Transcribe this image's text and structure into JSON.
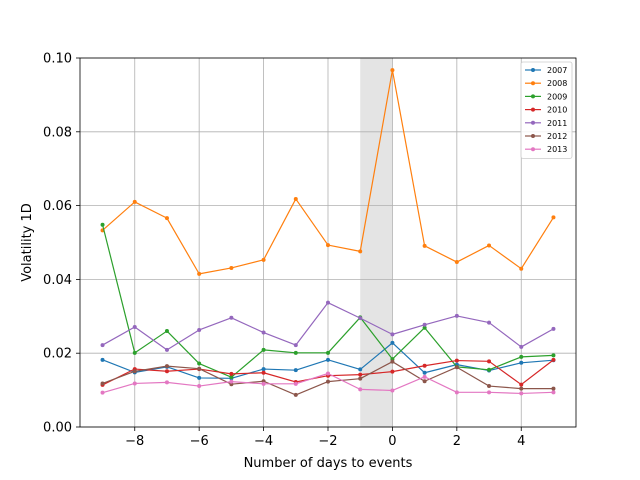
{
  "chart_data": {
    "type": "line",
    "title": "",
    "xlabel": "Number of days to events",
    "ylabel": "Volatility 1D",
    "xlim": [
      -9.7,
      5.7
    ],
    "ylim": [
      0.0,
      0.1
    ],
    "xticks": [
      -8,
      -6,
      -4,
      -2,
      0,
      2,
      4
    ],
    "xtick_labels": [
      "−8",
      "−6",
      "−4",
      "−2",
      "0",
      "2",
      "4"
    ],
    "yticks": [
      0.0,
      0.02,
      0.04,
      0.06,
      0.08,
      0.1
    ],
    "ytick_labels": [
      "0.00",
      "0.02",
      "0.04",
      "0.06",
      "0.08",
      "0.10"
    ],
    "grid": true,
    "shaded_region": {
      "x": [
        -1,
        0
      ],
      "color": "#e4e4e4"
    },
    "legend": {
      "position": "top-right"
    },
    "x": [
      -9,
      -8,
      -7,
      -6,
      -5,
      -4,
      -3,
      -2,
      -1,
      0,
      1,
      2,
      3,
      4,
      5
    ],
    "series": [
      {
        "name": "2007",
        "color": "#1f77b4",
        "values": [
          0.0182,
          0.0148,
          0.0163,
          0.0133,
          0.0132,
          0.0157,
          0.0154,
          0.0182,
          0.0156,
          0.0228,
          0.0147,
          0.0169,
          0.0153,
          0.0174,
          0.0181
        ]
      },
      {
        "name": "2008",
        "color": "#ff7f0e",
        "values": [
          0.0533,
          0.061,
          0.0566,
          0.0415,
          0.0431,
          0.0453,
          0.0618,
          0.0493,
          0.0476,
          0.0967,
          0.0491,
          0.0447,
          0.0492,
          0.0429,
          0.0568
        ]
      },
      {
        "name": "2009",
        "color": "#2ca02c",
        "values": [
          0.0548,
          0.0201,
          0.026,
          0.0172,
          0.0135,
          0.0209,
          0.0201,
          0.0201,
          0.0297,
          0.0184,
          0.0269,
          0.0163,
          0.0155,
          0.019,
          0.0194
        ]
      },
      {
        "name": "2010",
        "color": "#d62728",
        "values": [
          0.0114,
          0.0157,
          0.0151,
          0.0157,
          0.0144,
          0.0147,
          0.0122,
          0.0139,
          0.0142,
          0.015,
          0.0166,
          0.018,
          0.0178,
          0.0115,
          0.0182
        ]
      },
      {
        "name": "2011",
        "color": "#9467bd",
        "values": [
          0.0222,
          0.0271,
          0.0209,
          0.0263,
          0.0296,
          0.0256,
          0.0222,
          0.0337,
          0.0295,
          0.0251,
          0.0277,
          0.0301,
          0.0283,
          0.0217,
          0.0266
        ]
      },
      {
        "name": "2012",
        "color": "#8c564b",
        "values": [
          0.0118,
          0.0151,
          0.0165,
          0.0158,
          0.0116,
          0.0124,
          0.0087,
          0.0123,
          0.0131,
          0.0177,
          0.0124,
          0.0162,
          0.0111,
          0.0104,
          0.0104
        ]
      },
      {
        "name": "2013",
        "color": "#e377c2",
        "values": [
          0.0093,
          0.0118,
          0.0121,
          0.0111,
          0.0123,
          0.0117,
          0.0117,
          0.0145,
          0.0102,
          0.0099,
          0.0136,
          0.0094,
          0.0094,
          0.0091,
          0.0094
        ]
      }
    ]
  }
}
